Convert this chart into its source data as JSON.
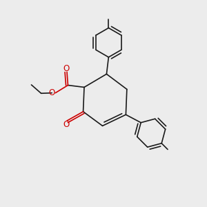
{
  "bg_color": "#ececec",
  "bond_color": "#1a1a1a",
  "o_color": "#cc0000",
  "lw": 1.2,
  "figsize": [
    3.0,
    3.0
  ],
  "dpi": 100,
  "xlim": [
    0,
    10
  ],
  "ylim": [
    0,
    10
  ]
}
